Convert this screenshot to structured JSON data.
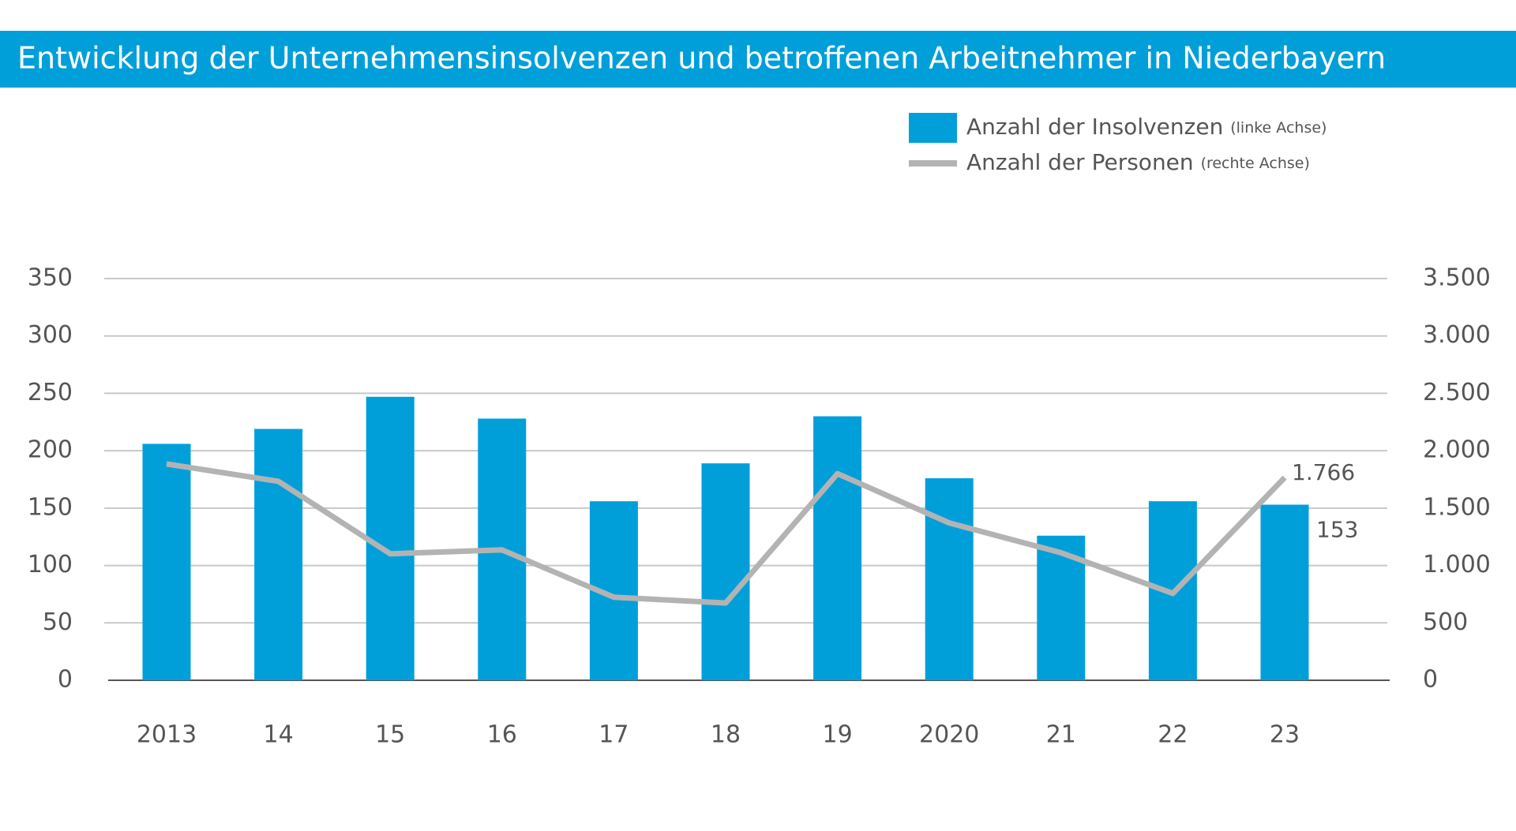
{
  "chart_data": {
    "type": "bar_line",
    "title": "Entwicklung der Unternehmensinsolvenzen und betroffenen Arbeitnehmer in Niederbayern",
    "categories": [
      "2013",
      "14",
      "15",
      "16",
      "17",
      "18",
      "19",
      "2020",
      "21",
      "22",
      "23"
    ],
    "series": [
      {
        "name": "Anzahl der Insolvenzen",
        "note": "(linke Achse)",
        "type": "bar",
        "color": "#009fd9",
        "values": [
          206,
          219,
          247,
          228,
          156,
          189,
          230,
          176,
          126,
          156,
          153
        ],
        "value_labels": [
          null,
          null,
          null,
          null,
          null,
          null,
          null,
          null,
          null,
          null,
          "153"
        ]
      },
      {
        "name": "Anzahl der Personen",
        "note": "(rechte Achse)",
        "type": "line",
        "axis": "y2",
        "color": "#b3b3b3",
        "values": [
          1885,
          1733,
          1102,
          1136,
          724,
          673,
          1800,
          1371,
          1111,
          757,
          1766
        ],
        "value_labels": [
          null,
          null,
          null,
          null,
          null,
          null,
          null,
          null,
          null,
          null,
          "1.766"
        ]
      }
    ],
    "ylim": [
      0,
      350
    ],
    "yticks": [
      0,
      50,
      100,
      150,
      200,
      250,
      300,
      350
    ],
    "y2lim": [
      0,
      3500
    ],
    "y2ticks": [
      0,
      500,
      {
        "value": 1000,
        "label": "1.000"
      },
      {
        "value": 1500,
        "label": "1.500"
      },
      {
        "value": 2000,
        "label": "2.000"
      },
      {
        "value": 2500,
        "label": "2.500"
      },
      {
        "value": 3000,
        "label": "3.000"
      },
      {
        "value": 3500,
        "label": "3.500"
      }
    ],
    "grid": true
  }
}
